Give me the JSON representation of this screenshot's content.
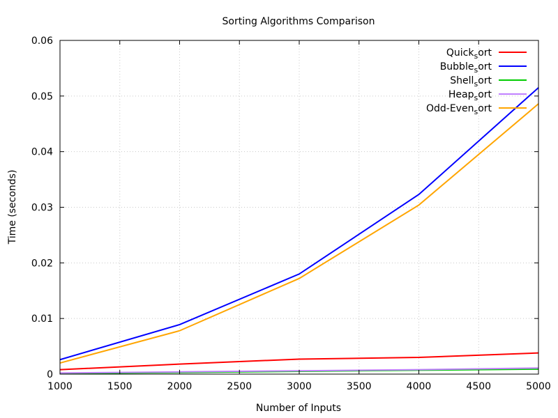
{
  "chart_data": {
    "type": "line",
    "title": "Sorting Algorithms Comparison",
    "xlabel": "Number of Inputs",
    "ylabel": "Time (seconds)",
    "xlim": [
      1000,
      5000
    ],
    "ylim": [
      0,
      0.06
    ],
    "x_ticks": [
      "1000",
      "1500",
      "2000",
      "2500",
      "3000",
      "3500",
      "4000",
      "4500",
      "5000"
    ],
    "y_ticks": [
      "0",
      "0.01",
      "0.02",
      "0.03",
      "0.04",
      "0.05",
      "0.06"
    ],
    "grid": true,
    "legend_position": "top-right",
    "x": [
      1000,
      2000,
      3000,
      4000,
      5000
    ],
    "series": [
      {
        "name": "Quick_sort",
        "legend_base": "Quick",
        "legend_sub": "s",
        "legend_rest": "ort",
        "color": "#ff0000",
        "values": [
          0.0008,
          0.0018,
          0.0027,
          0.003,
          0.0038
        ]
      },
      {
        "name": "Bubble_sort",
        "legend_base": "Bubble",
        "legend_sub": "s",
        "legend_rest": "ort",
        "color": "#0000ff",
        "values": [
          0.0026,
          0.0089,
          0.018,
          0.0323,
          0.0515
        ]
      },
      {
        "name": "Shell_sort",
        "legend_base": "Shell",
        "legend_sub": "s",
        "legend_rest": "ort",
        "color": "#00cc00",
        "values": [
          0.0001,
          0.0003,
          0.0005,
          0.0007,
          0.0009
        ]
      },
      {
        "name": "Heap_sort",
        "legend_base": "Heap",
        "legend_sub": "s",
        "legend_rest": "ort",
        "color": "#c080ff",
        "values": [
          0.0002,
          0.0004,
          0.0006,
          0.0008,
          0.0011
        ]
      },
      {
        "name": "Odd-Even_sort",
        "legend_base": "Odd-Even",
        "legend_sub": "s",
        "legend_rest": "ort",
        "color": "#ffa500",
        "values": [
          0.002,
          0.0078,
          0.0172,
          0.0304,
          0.0486
        ]
      }
    ]
  }
}
